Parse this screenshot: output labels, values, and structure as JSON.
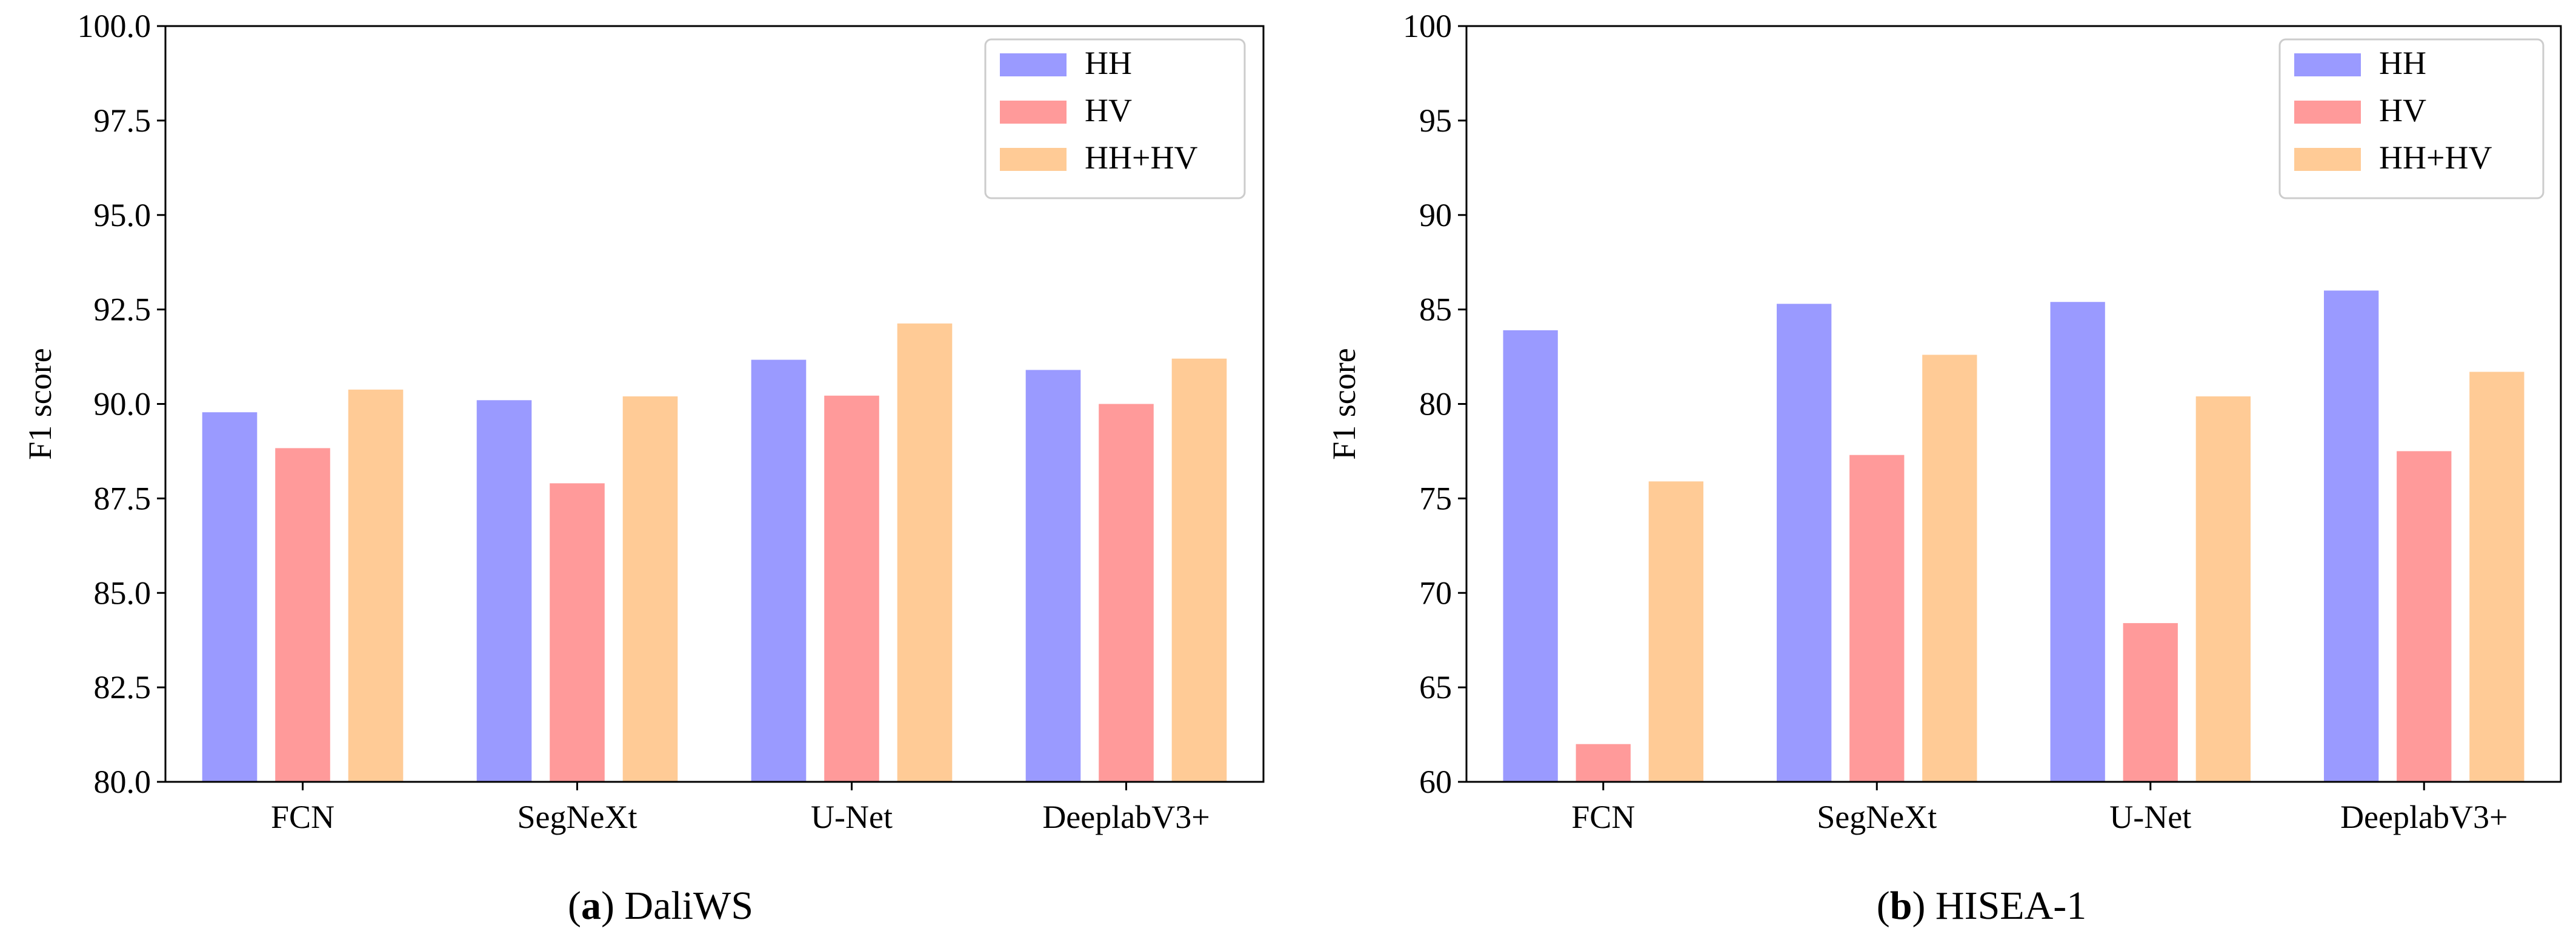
{
  "colors": {
    "HH": "#9a9aff",
    "HV": "#ff9a9a",
    "HH+HV": "#ffcb96"
  },
  "chart_data": [
    {
      "type": "bar",
      "panel_label": "a",
      "caption": "DaliWS",
      "categories": [
        "FCN",
        "SegNeXt",
        "U-Net",
        "DeeplabV3+"
      ],
      "series": [
        {
          "name": "HH",
          "values": [
            89.78,
            90.1,
            91.17,
            90.9
          ]
        },
        {
          "name": "HV",
          "values": [
            88.83,
            87.9,
            90.22,
            90.0
          ]
        },
        {
          "name": "HH+HV",
          "values": [
            90.38,
            90.2,
            92.13,
            91.2
          ]
        }
      ],
      "xlabel": "",
      "ylabel": "F1 score",
      "ylim": [
        80,
        100
      ],
      "yticks": [
        80.0,
        82.5,
        85.0,
        87.5,
        90.0,
        92.5,
        95.0,
        97.5,
        100.0
      ],
      "ytick_labels": [
        "80.0",
        "82.5",
        "85.0",
        "87.5",
        "90.0",
        "92.5",
        "95.0",
        "97.5",
        "100.0"
      ],
      "legend": "top-right"
    },
    {
      "type": "bar",
      "panel_label": "b",
      "caption": "HISEA-1",
      "categories": [
        "FCN",
        "SegNeXt",
        "U-Net",
        "DeeplabV3+"
      ],
      "series": [
        {
          "name": "HH",
          "values": [
            83.9,
            85.3,
            85.4,
            86.0
          ]
        },
        {
          "name": "HV",
          "values": [
            62.0,
            77.3,
            68.4,
            77.5
          ]
        },
        {
          "name": "HH+HV",
          "values": [
            75.9,
            82.6,
            80.4,
            81.7
          ]
        }
      ],
      "xlabel": "",
      "ylabel": "F1 score",
      "ylim": [
        60,
        100
      ],
      "yticks": [
        60,
        65,
        70,
        75,
        80,
        85,
        90,
        95,
        100
      ],
      "ytick_labels": [
        "60",
        "65",
        "70",
        "75",
        "80",
        "85",
        "90",
        "95",
        "100"
      ],
      "legend": "top-right"
    }
  ]
}
